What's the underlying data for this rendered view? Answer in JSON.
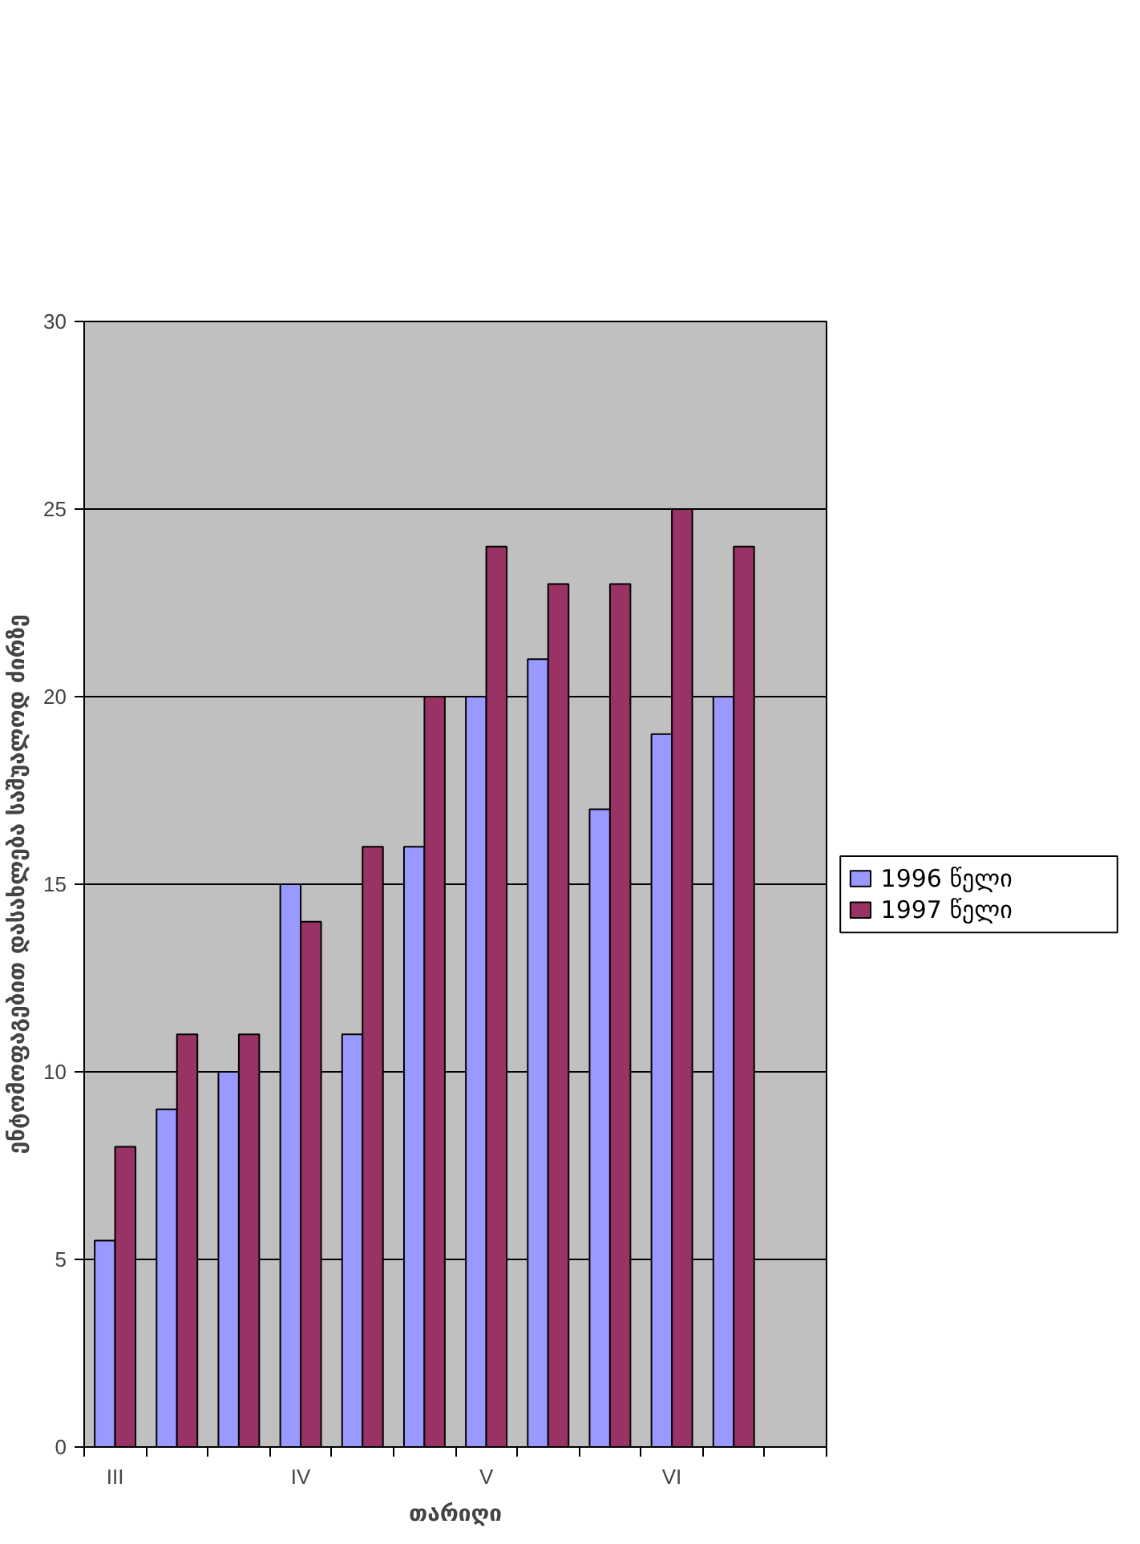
{
  "chart_data": {
    "type": "bar",
    "ylabel": "ენტომოფაგებით დასახლება საშუალოდ ძირზე",
    "xlabel": "თარიღი",
    "categories": [
      "III",
      null,
      null,
      "IV",
      null,
      null,
      "V",
      null,
      null,
      "VI",
      null,
      null
    ],
    "series": [
      {
        "name": "1996 წელი",
        "color": "#9999ff",
        "values": [
          5.5,
          9,
          10,
          15,
          11,
          16,
          20,
          21,
          17,
          19,
          20,
          null
        ]
      },
      {
        "name": "1997 წელი",
        "color": "#993366",
        "values": [
          8,
          11,
          11,
          14,
          16,
          20,
          24,
          23,
          23,
          25,
          24,
          null
        ]
      }
    ],
    "ylim": [
      0,
      30
    ],
    "yticks": [
      0,
      5,
      10,
      15,
      20,
      25,
      30
    ],
    "grid": "y",
    "legend": "right"
  }
}
